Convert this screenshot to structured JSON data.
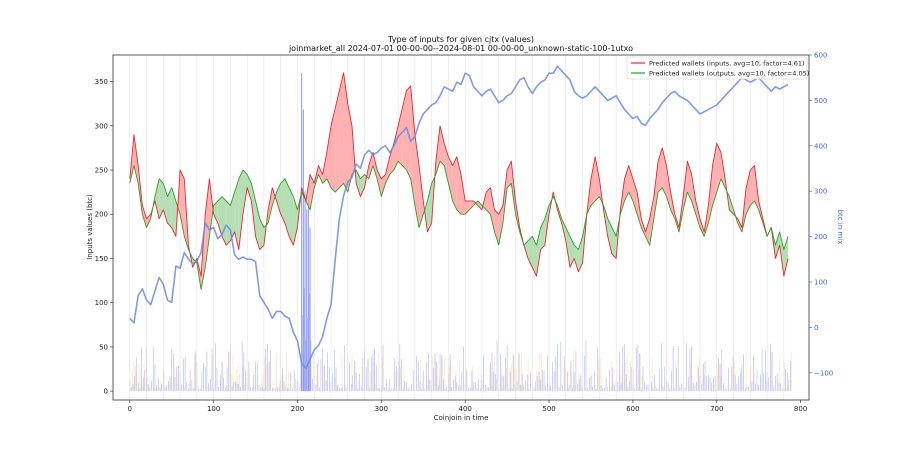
{
  "chart_data": {
    "type": "line",
    "title": "Type of inputs for given cjtx (values)",
    "subtitle": "joinmarket_all 2024-07-01 00-00-00--2024-08-01 00-00-00_unknown-static-100-1utxo",
    "xlabel": "Coinjoin in time",
    "ylabel": "Inputs values (btc)",
    "y2label": "btc in mix",
    "xlim": [
      -20,
      810
    ],
    "ylim": [
      -10,
      380
    ],
    "y2lim": [
      -160,
      600
    ],
    "xticks": [
      0,
      100,
      200,
      300,
      400,
      500,
      600,
      700,
      800
    ],
    "yticks": [
      0,
      50,
      100,
      150,
      200,
      250,
      300,
      350
    ],
    "y2ticks": [
      -100,
      0,
      100,
      200,
      300,
      400,
      500,
      600
    ],
    "grid": "vertical-light",
    "legend_position": "top-right",
    "fill_between": true,
    "colors": {
      "inputs": "#e8292e",
      "outputs": "#2ca02c",
      "mix": "#6a8be0",
      "fill_red": "#ffa3a3",
      "fill_green": "#a8d8a8",
      "bars_blue": "#7b8ef5",
      "bars_orange": "#ffd9a0"
    },
    "series": [
      {
        "name": "Predicted wallets (inputs, avg=10, factor=4.61)",
        "axis": "left",
        "x": [
          0,
          5,
          10,
          15,
          20,
          25,
          30,
          35,
          40,
          45,
          50,
          55,
          60,
          65,
          70,
          75,
          80,
          85,
          90,
          95,
          100,
          105,
          110,
          115,
          120,
          125,
          130,
          135,
          140,
          145,
          150,
          155,
          160,
          165,
          170,
          175,
          180,
          185,
          190,
          195,
          200,
          205,
          210,
          215,
          220,
          225,
          230,
          235,
          240,
          245,
          250,
          255,
          260,
          265,
          270,
          275,
          280,
          285,
          290,
          295,
          300,
          305,
          310,
          315,
          320,
          325,
          330,
          335,
          340,
          345,
          350,
          355,
          360,
          365,
          370,
          375,
          380,
          385,
          390,
          395,
          400,
          405,
          410,
          415,
          420,
          425,
          430,
          435,
          440,
          445,
          450,
          455,
          460,
          465,
          470,
          475,
          480,
          485,
          490,
          495,
          500,
          505,
          510,
          515,
          520,
          525,
          530,
          535,
          540,
          545,
          550,
          555,
          560,
          565,
          570,
          575,
          580,
          585,
          590,
          595,
          600,
          605,
          610,
          615,
          620,
          625,
          630,
          635,
          640,
          645,
          650,
          655,
          660,
          665,
          670,
          675,
          680,
          685,
          690,
          695,
          700,
          705,
          710,
          715,
          720,
          725,
          730,
          735,
          740,
          745,
          750,
          755,
          760,
          765,
          770,
          775,
          780,
          785
        ],
        "values": [
          240,
          290,
          255,
          210,
          195,
          200,
          215,
          195,
          205,
          190,
          185,
          175,
          250,
          240,
          165,
          140,
          150,
          130,
          200,
          240,
          200,
          190,
          175,
          165,
          170,
          180,
          160,
          200,
          230,
          215,
          175,
          160,
          165,
          205,
          230,
          215,
          200,
          190,
          175,
          165,
          185,
          230,
          215,
          245,
          235,
          255,
          245,
          270,
          300,
          320,
          340,
          360,
          325,
          300,
          235,
          220,
          230,
          255,
          270,
          250,
          240,
          245,
          265,
          280,
          300,
          320,
          340,
          345,
          290,
          255,
          215,
          180,
          190,
          260,
          300,
          280,
          265,
          255,
          265,
          245,
          215,
          215,
          215,
          210,
          205,
          225,
          230,
          205,
          200,
          210,
          250,
          260,
          215,
          185,
          165,
          150,
          140,
          130,
          160,
          165,
          200,
          225,
          205,
          190,
          170,
          140,
          150,
          135,
          145,
          200,
          240,
          265,
          240,
          205,
          175,
          155,
          150,
          205,
          240,
          255,
          240,
          225,
          195,
          180,
          195,
          220,
          260,
          275,
          255,
          225,
          200,
          185,
          220,
          260,
          245,
          215,
          195,
          180,
          210,
          255,
          280,
          270,
          240,
          205,
          200,
          195,
          185,
          230,
          250,
          255,
          215,
          195,
          175,
          185,
          150,
          165,
          130,
          150
        ]
      },
      {
        "name": "Predicted wallets (outputs, avg=10, factor=4.05)",
        "axis": "left",
        "x": [
          0,
          5,
          10,
          15,
          20,
          25,
          30,
          35,
          40,
          45,
          50,
          55,
          60,
          65,
          70,
          75,
          80,
          85,
          90,
          95,
          100,
          105,
          110,
          115,
          120,
          125,
          130,
          135,
          140,
          145,
          150,
          155,
          160,
          165,
          170,
          175,
          180,
          185,
          190,
          195,
          200,
          205,
          210,
          215,
          220,
          225,
          230,
          235,
          240,
          245,
          250,
          255,
          260,
          265,
          270,
          275,
          280,
          285,
          290,
          295,
          300,
          305,
          310,
          315,
          320,
          325,
          330,
          335,
          340,
          345,
          350,
          355,
          360,
          365,
          370,
          375,
          380,
          385,
          390,
          395,
          400,
          405,
          410,
          415,
          420,
          425,
          430,
          435,
          440,
          445,
          450,
          455,
          460,
          465,
          470,
          475,
          480,
          485,
          490,
          495,
          500,
          505,
          510,
          515,
          520,
          525,
          530,
          535,
          540,
          545,
          550,
          555,
          560,
          565,
          570,
          575,
          580,
          585,
          590,
          595,
          600,
          605,
          610,
          615,
          620,
          625,
          630,
          635,
          640,
          645,
          650,
          655,
          660,
          665,
          670,
          675,
          680,
          685,
          690,
          695,
          700,
          705,
          710,
          715,
          720,
          725,
          730,
          735,
          740,
          745,
          750,
          755,
          760,
          765,
          770,
          775,
          780,
          785
        ],
        "values": [
          235,
          255,
          235,
          200,
          185,
          195,
          220,
          240,
          235,
          220,
          230,
          215,
          200,
          175,
          160,
          150,
          145,
          115,
          140,
          175,
          210,
          215,
          220,
          215,
          210,
          225,
          240,
          250,
          245,
          235,
          215,
          195,
          185,
          190,
          210,
          225,
          235,
          240,
          230,
          220,
          205,
          225,
          215,
          205,
          230,
          245,
          235,
          240,
          230,
          225,
          230,
          235,
          225,
          245,
          250,
          240,
          245,
          240,
          255,
          240,
          220,
          235,
          245,
          250,
          260,
          255,
          250,
          240,
          210,
          185,
          200,
          215,
          235,
          245,
          260,
          255,
          235,
          215,
          205,
          200,
          200,
          205,
          210,
          215,
          210,
          205,
          200,
          180,
          165,
          190,
          230,
          235,
          200,
          180,
          165,
          170,
          175,
          165,
          185,
          195,
          210,
          220,
          210,
          195,
          185,
          175,
          165,
          160,
          175,
          200,
          210,
          215,
          220,
          210,
          195,
          185,
          175,
          200,
          215,
          225,
          215,
          200,
          185,
          175,
          165,
          195,
          225,
          230,
          220,
          205,
          195,
          180,
          205,
          225,
          215,
          200,
          185,
          175,
          190,
          210,
          225,
          240,
          230,
          220,
          205,
          190,
          180,
          200,
          210,
          215,
          205,
          190,
          175,
          185,
          165,
          180,
          160,
          175
        ]
      },
      {
        "name": "",
        "axis": "right",
        "x": [
          0,
          5,
          10,
          15,
          20,
          25,
          30,
          35,
          40,
          45,
          50,
          55,
          60,
          65,
          70,
          75,
          80,
          85,
          90,
          95,
          100,
          105,
          110,
          115,
          120,
          125,
          130,
          135,
          140,
          145,
          150,
          155,
          160,
          165,
          170,
          175,
          180,
          185,
          190,
          195,
          200,
          205,
          210,
          215,
          220,
          225,
          230,
          235,
          240,
          245,
          250,
          255,
          260,
          265,
          270,
          275,
          280,
          285,
          290,
          295,
          300,
          305,
          310,
          315,
          320,
          325,
          330,
          335,
          340,
          345,
          350,
          355,
          360,
          365,
          370,
          375,
          380,
          385,
          390,
          395,
          400,
          405,
          410,
          415,
          420,
          425,
          430,
          435,
          440,
          445,
          450,
          455,
          460,
          465,
          470,
          475,
          480,
          485,
          490,
          495,
          500,
          505,
          510,
          515,
          520,
          525,
          530,
          535,
          540,
          545,
          550,
          555,
          560,
          565,
          570,
          575,
          580,
          585,
          590,
          595,
          600,
          605,
          610,
          615,
          620,
          625,
          630,
          635,
          640,
          645,
          650,
          655,
          660,
          665,
          670,
          675,
          680,
          685,
          690,
          695,
          700,
          705,
          710,
          715,
          720,
          725,
          730,
          735,
          740,
          745,
          750,
          755,
          760,
          765,
          770,
          775,
          780,
          785
        ],
        "values": [
          20,
          10,
          70,
          85,
          60,
          50,
          80,
          110,
          95,
          60,
          55,
          135,
          130,
          165,
          150,
          140,
          145,
          165,
          230,
          215,
          220,
          195,
          205,
          225,
          215,
          160,
          150,
          155,
          150,
          150,
          145,
          70,
          55,
          40,
          20,
          35,
          35,
          25,
          20,
          -10,
          -30,
          -80,
          -90,
          -70,
          -50,
          -40,
          -20,
          20,
          50,
          150,
          240,
          290,
          320,
          330,
          360,
          350,
          380,
          390,
          380,
          385,
          395,
          400,
          385,
          400,
          420,
          430,
          440,
          410,
          420,
          450,
          470,
          480,
          490,
          495,
          510,
          530,
          525,
          520,
          540,
          535,
          560,
          555,
          530,
          520,
          510,
          520,
          525,
          510,
          495,
          500,
          510,
          515,
          530,
          545,
          550,
          530,
          515,
          530,
          540,
          545,
          560,
          560,
          575,
          565,
          555,
          545,
          520,
          510,
          505,
          510,
          520,
          530,
          520,
          510,
          500,
          505,
          510,
          495,
          480,
          470,
          460,
          465,
          450,
          445,
          460,
          470,
          480,
          495,
          505,
          515,
          520,
          510,
          505,
          500,
          490,
          480,
          470,
          475,
          480,
          485,
          490,
          500,
          510,
          520,
          530,
          540,
          550,
          545,
          540,
          545,
          550,
          540,
          530,
          520,
          530,
          525,
          530,
          535
        ]
      }
    ]
  }
}
